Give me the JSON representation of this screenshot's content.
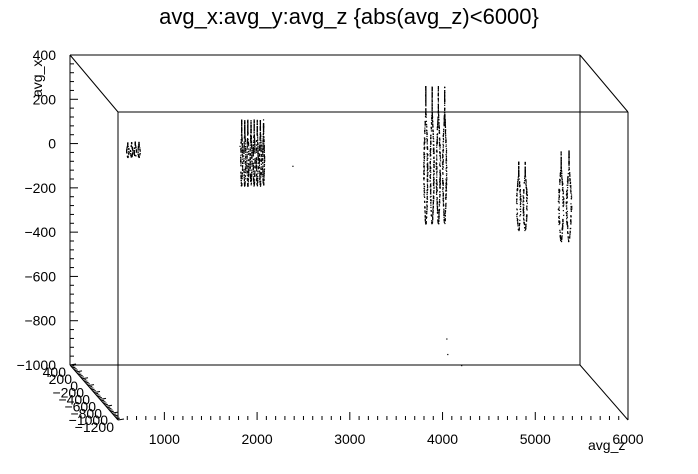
{
  "chart_data": {
    "type": "scatter",
    "projection": "3d",
    "title": "avg_x:avg_y:avg_z {abs(avg_z)<6000}",
    "x_axis": {
      "label": "avg_z",
      "range": [
        500,
        6000
      ],
      "ticks": [
        1000,
        2000,
        3000,
        4000,
        5000,
        6000
      ]
    },
    "y_axis": {
      "label": "avg_x",
      "range": [
        -1000,
        400
      ],
      "ticks": [
        400,
        200,
        0,
        -200,
        -400,
        -600,
        -800,
        -1000
      ]
    },
    "depth_axis": {
      "label": "",
      "range": [
        -1200,
        400
      ],
      "ticks": [
        "400",
        "200",
        "0",
        "-200",
        "-400",
        "-600",
        "-800",
        "-1000",
        "-1200"
      ]
    },
    "grid": false,
    "legend": "none",
    "series": [
      {
        "clusters": [
          {
            "z_range": [
              580,
              740
            ],
            "x_range": [
              -60,
              10
            ],
            "strands": 4
          },
          {
            "z_range": [
              1810,
              2080
            ],
            "x_range": [
              -190,
              110
            ],
            "strands": 8
          },
          {
            "z_range": [
              3780,
              4050
            ],
            "x_range": [
              -360,
              260
            ],
            "strands": 4
          },
          {
            "z_range": [
              4780,
              4920
            ],
            "x_range": [
              -390,
              -80
            ],
            "strands": 2
          },
          {
            "z_range": [
              5230,
              5400
            ],
            "x_range": [
              -440,
              -30
            ],
            "strands": 2
          }
        ],
        "stray_points": [
          {
            "z": 2380,
            "x": -100
          },
          {
            "z": 1810,
            "x": -10
          },
          {
            "z": 4040,
            "x": -880
          },
          {
            "z": 4050,
            "x": -950
          },
          {
            "z": 4200,
            "x": -1000
          }
        ]
      }
    ]
  }
}
